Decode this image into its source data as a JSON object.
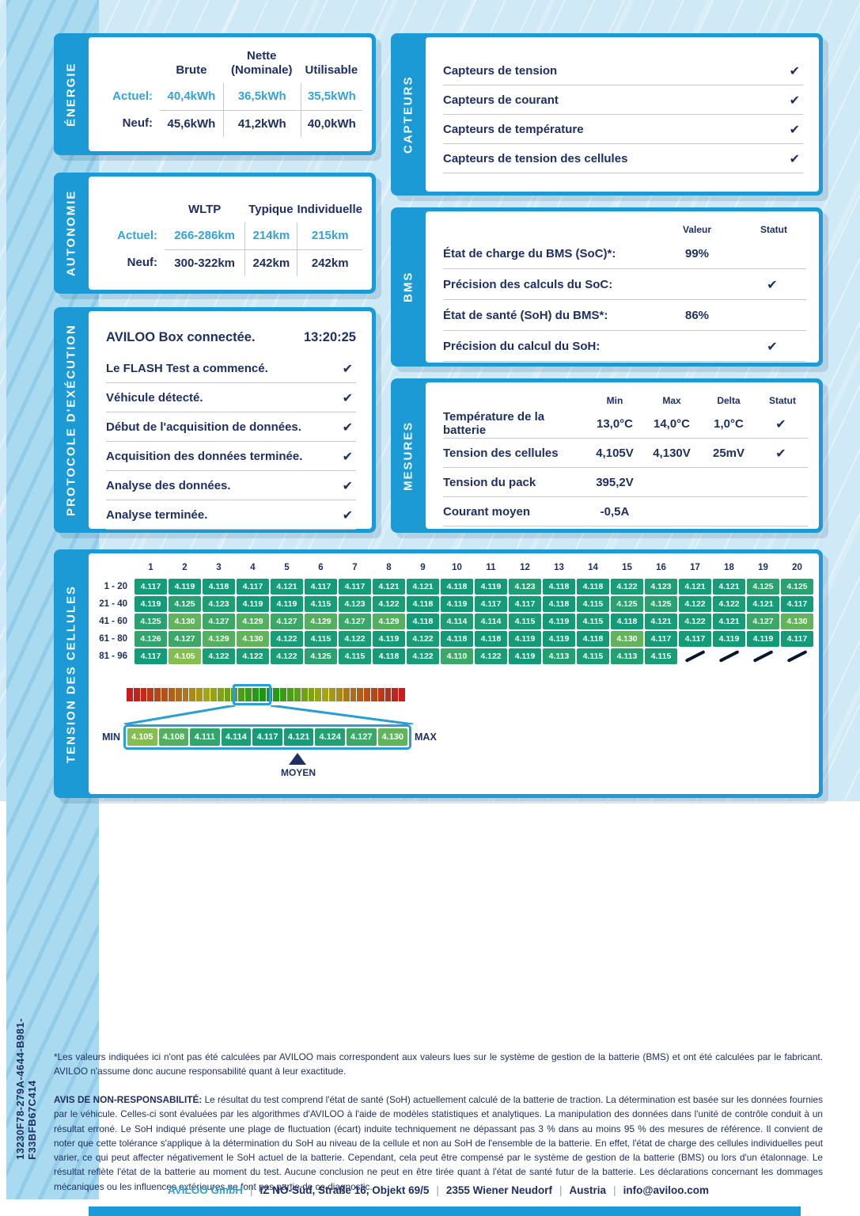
{
  "colors": {
    "navy": "#1e2f63",
    "cyan": "#35a3d7",
    "panel_blue": "#1b9ad5",
    "cell_teal": "#139b77",
    "cell_light_green": "#82bf4e",
    "highlight_blue": "#2a9fd4"
  },
  "energie": {
    "title": "ÉNERGIE",
    "col_headers": [
      [
        "Brute"
      ],
      [
        "Nette",
        "(Nominale)"
      ],
      [
        "Utilisable"
      ]
    ],
    "rows": [
      {
        "label": "Actuel:",
        "values": [
          "40,4kWh",
          "36,5kWh",
          "35,5kWh"
        ],
        "accent": true
      },
      {
        "label": "Neuf:",
        "values": [
          "45,6kWh",
          "41,2kWh",
          "40,0kWh"
        ],
        "accent": false
      }
    ]
  },
  "autonomie": {
    "title": "AUTONOMIE",
    "col_headers": [
      [
        "WLTP"
      ],
      [
        "Typique"
      ],
      [
        "Individuelle"
      ]
    ],
    "rows": [
      {
        "label": "Actuel:",
        "values": [
          "266-286km",
          "214km",
          "215km"
        ],
        "accent": true
      },
      {
        "label": "Neuf:",
        "values": [
          "300-322km",
          "242km",
          "242km"
        ],
        "accent": false
      }
    ]
  },
  "capteurs": {
    "title": "CAPTEURS",
    "items": [
      {
        "label": "Capteurs de tension",
        "check": true
      },
      {
        "label": "Capteurs de courant",
        "check": true
      },
      {
        "label": "Capteurs de température",
        "check": true
      },
      {
        "label": "Capteurs de tension des cellules",
        "check": true
      }
    ]
  },
  "bms": {
    "title": "BMS",
    "headers": {
      "value": "Valeur",
      "status": "Statut"
    },
    "rows": [
      {
        "label": "État de charge du BMS (SoC)*:",
        "value": "99%",
        "check": false
      },
      {
        "label": "Précision des calculs du SoC:",
        "value": "",
        "check": true
      },
      {
        "label": "État de santé (SoH) du BMS*:",
        "value": "86%",
        "check": false
      },
      {
        "label": "Précision du calcul du SoH:",
        "value": "",
        "check": true
      }
    ]
  },
  "protocole": {
    "title": "PROTOCOLE D'EXÉCUTION",
    "header": {
      "label": "AVILOO Box connectée.",
      "time": "13:20:25"
    },
    "steps": [
      {
        "label": "Le FLASH Test a commencé.",
        "check": true
      },
      {
        "label": "Véhicule détecté.",
        "check": true
      },
      {
        "label": "Début de l'acquisition de données.",
        "check": true
      },
      {
        "label": "Acquisition des données terminée.",
        "check": true
      },
      {
        "label": "Analyse des données.",
        "check": true
      },
      {
        "label": "Analyse terminée.",
        "check": true
      }
    ]
  },
  "mesures": {
    "title": "MESURES",
    "headers": [
      "Min",
      "Max",
      "Delta",
      "Statut"
    ],
    "rows": [
      {
        "label": "Température de la batterie",
        "min": "13,0°C",
        "max": "14,0°C",
        "delta": "1,0°C",
        "check": true
      },
      {
        "label": "Tension des cellules",
        "min": "4,105V",
        "max": "4,130V",
        "delta": "25mV",
        "check": true
      },
      {
        "label": "Tension du pack",
        "min": "395,2V",
        "max": "",
        "delta": "",
        "check": false
      },
      {
        "label": "Courant moyen",
        "min": "-0,5A",
        "max": "",
        "delta": "",
        "check": false
      }
    ]
  },
  "cellules": {
    "title": "TENSION DES CELLULES",
    "col_headers": [
      "1",
      "2",
      "3",
      "4",
      "5",
      "6",
      "7",
      "8",
      "9",
      "10",
      "11",
      "12",
      "13",
      "14",
      "15",
      "16",
      "17",
      "18",
      "19",
      "20"
    ],
    "rows": [
      {
        "label": "1 - 20",
        "values": [
          "4.117",
          "4.119",
          "4.118",
          "4.117",
          "4.121",
          "4.117",
          "4.117",
          "4.121",
          "4.121",
          "4.118",
          "4.119",
          "4.123",
          "4.118",
          "4.118",
          "4.122",
          "4.123",
          "4.121",
          "4.121",
          "4.125",
          "4.125"
        ]
      },
      {
        "label": "21 - 40",
        "values": [
          "4.119",
          "4.125",
          "4.123",
          "4.119",
          "4.119",
          "4.115",
          "4.123",
          "4.122",
          "4.118",
          "4.119",
          "4.117",
          "4.117",
          "4.118",
          "4.115",
          "4.125",
          "4.125",
          "4.122",
          "4.122",
          "4.121",
          "4.117"
        ]
      },
      {
        "label": "41 - 60",
        "values": [
          "4.125",
          "4.130",
          "4.127",
          "4.129",
          "4.127",
          "4.129",
          "4.127",
          "4.129",
          "4.118",
          "4.114",
          "4.114",
          "4.115",
          "4.119",
          "4.115",
          "4.118",
          "4.121",
          "4.122",
          "4.121",
          "4.127",
          "4.130"
        ]
      },
      {
        "label": "61 - 80",
        "values": [
          "4.126",
          "4.127",
          "4.129",
          "4.130",
          "4.122",
          "4.115",
          "4.122",
          "4.119",
          "4.122",
          "4.118",
          "4.118",
          "4.119",
          "4.119",
          "4.118",
          "4.130",
          "4.117",
          "4.117",
          "4.119",
          "4.119",
          "4.117"
        ]
      },
      {
        "label": "81 - 96",
        "values": [
          "4.117",
          "4.105",
          "4.122",
          "4.122",
          "4.122",
          "4.125",
          "4.115",
          "4.118",
          "4.122",
          "4.110",
          "4.122",
          "4.119",
          "4.113",
          "4.115",
          "4.113",
          "4.115"
        ]
      }
    ],
    "gradient_segments": 40,
    "legend": {
      "min": "MIN",
      "max": "MAX",
      "mean": "MOYEN",
      "values": [
        "4.105",
        "4.108",
        "4.111",
        "4.114",
        "4.117",
        "4.121",
        "4.124",
        "4.127",
        "4.130"
      ]
    }
  },
  "page": {
    "code": "13230F78-279A-4644-B981-F33BFB67C414",
    "footnote": "*Les valeurs indiquées ici n'ont pas été calculées par AVILOO mais correspondent aux valeurs lues sur le système de gestion de la batterie (BMS) et ont été calculées par le fabricant. AVILOO n'assume donc aucune responsabilité quant à leur exactitude.",
    "disclaimer": {
      "title": "AVIS DE NON-RESPONSABILITÉ:",
      "body": " Le résultat du test comprend l'état de santé (SoH) actuellement calculé de la batterie de traction. La détermination est basée sur les données fournies par le véhicule. Celles-ci sont évaluées par les algorithmes d'AVILOO à l'aide de modèles statistiques et analytiques. La manipulation des données dans l'unité de contrôle conduit à un résultat erroné. Le SoH indiqué présente une plage de fluctuation (écart) induite techniquement ne dépassant pas 3 % dans au moins 95 % des mesures de référence. Il convient de noter que cette tolérance s'applique à la détermination du SoH au niveau de la cellule et non au SoH de l'ensemble de la batterie. En effet, l'état de charge des cellules individuelles peut varier, ce qui peut affecter négativement le SoH actuel de la batterie. Cependant, cela peut être compensé par le système de gestion de la batterie (BMS) ou lors d'un étalonnage. Le résultat reflète l'état de la batterie au moment du test. Aucune conclusion ne peut en être tirée quant à l'état de santé futur de la batterie. Les déclarations concernant les dommages mécaniques ou les influences extérieures ne font pas partie de ce diagnostic."
    },
    "footer_items": [
      "AVILOO GmbH",
      "IZ NÖ-Süd, Straße 16, Objekt 69/5",
      "2355 Wiener Neudorf",
      "Austria",
      "info@aviloo.com"
    ],
    "footer_separator": "|"
  }
}
